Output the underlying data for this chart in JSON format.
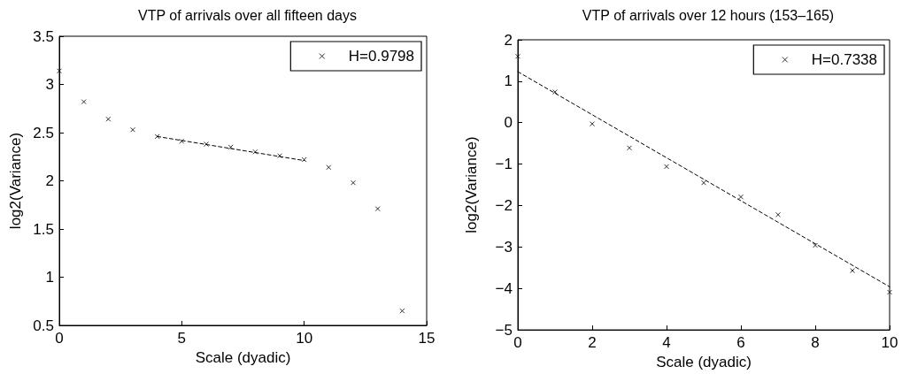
{
  "chart_data": [
    {
      "type": "scatter",
      "title": "VTP of arrivals over all fifteen days",
      "xlabel": "Scale (dyadic)",
      "ylabel": "log2(Variance)",
      "xlim": [
        0,
        15
      ],
      "xticks": [
        0,
        5,
        10,
        15
      ],
      "ylim": [
        0.5,
        3.5
      ],
      "yticks": [
        0.5,
        1,
        1.5,
        2,
        2.5,
        3,
        3.5
      ],
      "grid": false,
      "legend": "top right",
      "marker": "cross",
      "series": [
        {
          "name": "H=0.9798",
          "color": "#000000",
          "x": [
            0,
            1,
            2,
            3,
            4,
            5,
            6,
            7,
            8,
            9,
            10,
            11,
            12,
            13,
            14
          ],
          "values": [
            3.14,
            2.82,
            2.64,
            2.53,
            2.46,
            2.41,
            2.38,
            2.35,
            2.3,
            2.26,
            2.22,
            2.14,
            1.98,
            1.71,
            0.65
          ]
        },
        {
          "type": "line",
          "color": "#000000",
          "marker": "none",
          "line_style": "dashed",
          "x": [
            4,
            10
          ],
          "values": [
            2.46,
            2.21
          ]
        }
      ]
    },
    {
      "type": "scatter",
      "title": "VTP of arrivals over 12 hours (153–165)",
      "xlabel": "Scale (dyadic)",
      "ylabel": "log2(Variance)",
      "xlim": [
        0,
        10
      ],
      "xticks": [
        0,
        2,
        4,
        6,
        8,
        10
      ],
      "ylim": [
        -5,
        2
      ],
      "yticks": [
        -5,
        -4,
        -3,
        -2,
        -1,
        0,
        1,
        2
      ],
      "grid": false,
      "legend": "top right",
      "marker": "cross",
      "series": [
        {
          "name": "H=0.7338",
          "color": "#000000",
          "x": [
            0,
            1,
            2,
            3,
            4,
            5,
            6,
            7,
            8,
            9,
            10
          ],
          "values": [
            1.6,
            0.74,
            -0.03,
            -0.61,
            -1.06,
            -1.45,
            -1.79,
            -2.22,
            -2.96,
            -3.57,
            -4.09
          ]
        },
        {
          "type": "line",
          "color": "#000000",
          "marker": "none",
          "line_style": "dashed",
          "x": [
            0,
            10
          ],
          "values": [
            1.23,
            -3.96
          ]
        }
      ]
    }
  ]
}
